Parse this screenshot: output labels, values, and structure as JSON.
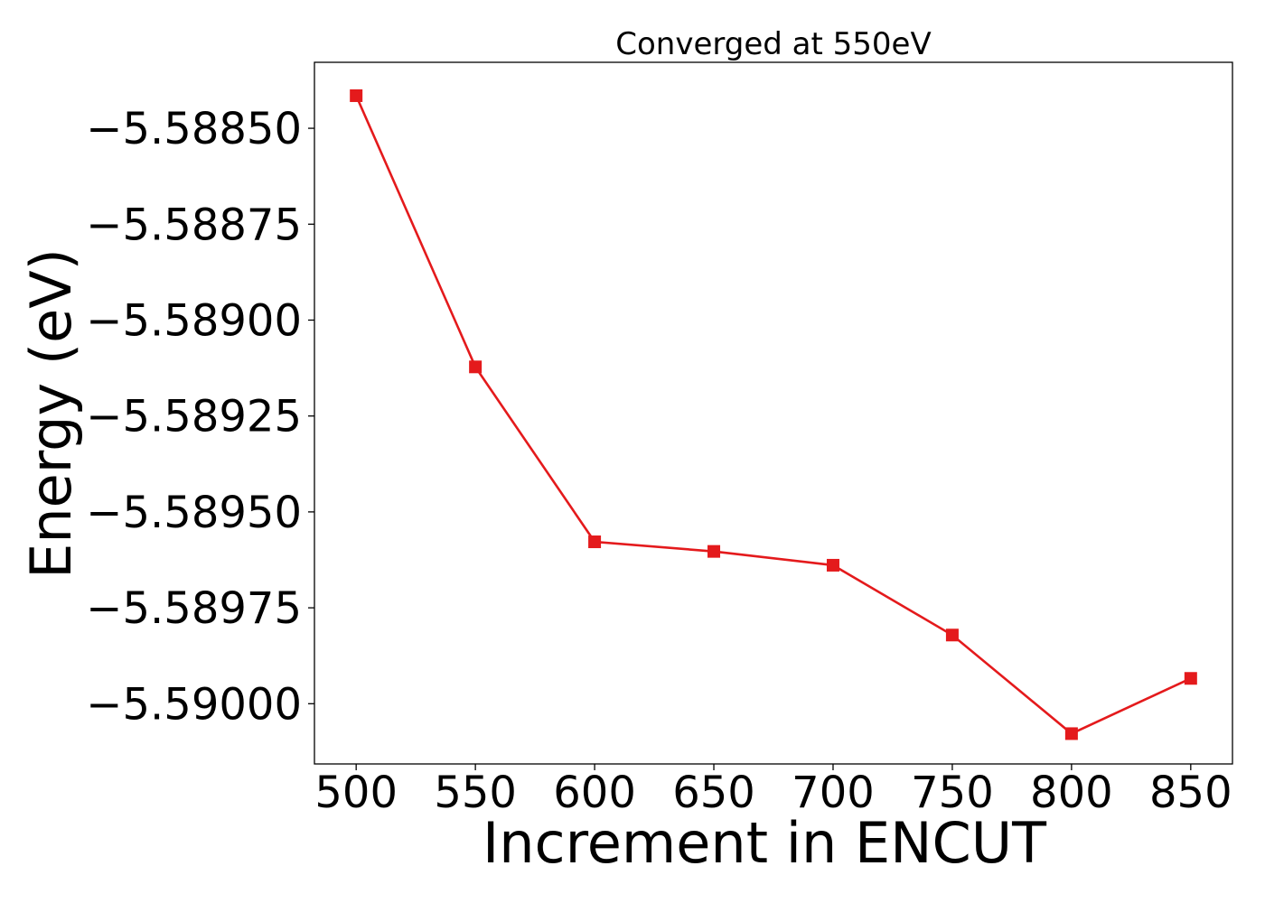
{
  "chart_data": {
    "type": "line",
    "title": "Converged at 550eV",
    "xlabel": "Increment in ENCUT",
    "ylabel": "Energy (eV)",
    "x": [
      500,
      550,
      600,
      650,
      700,
      750,
      800,
      850
    ],
    "series": [
      {
        "values": [
          -5.588415,
          -5.589122,
          -5.589578,
          -5.589603,
          -5.589639,
          -5.589821,
          -5.590078,
          -5.589934
        ],
        "color": "#e41a1c",
        "marker": "square"
      }
    ],
    "xticks": [
      500,
      550,
      600,
      650,
      700,
      750,
      800,
      850
    ],
    "xtick_labels": [
      "500",
      "550",
      "600",
      "650",
      "700",
      "750",
      "800",
      "850"
    ],
    "yticks": [
      -5.5885,
      -5.58875,
      -5.589,
      -5.58925,
      -5.5895,
      -5.58975,
      -5.59
    ],
    "ytick_labels": [
      "−5.58850",
      "−5.58875",
      "−5.58900",
      "−5.58925",
      "−5.58950",
      "−5.58975",
      "−5.59000"
    ],
    "xlim": [
      482.5,
      867.5
    ],
    "ylim": [
      -5.590157,
      -5.588328
    ],
    "grid": false,
    "legend": "none"
  }
}
